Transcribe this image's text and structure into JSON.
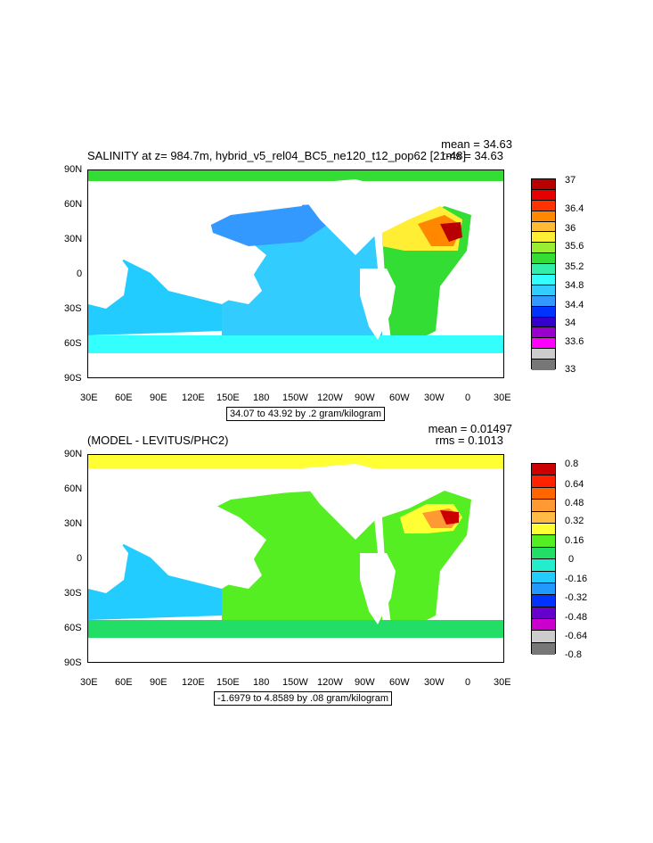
{
  "panels": [
    {
      "title": "SALINITY at z= 984.7m, hybrid_v5_rel04_BC5_ne120_t12_pop62 [21-48]",
      "mean_text": "mean = 34.63",
      "rms_text": "rms = 34.63",
      "range_text": "34.07 to 43.92 by .2 gram/kilogram",
      "colorbar_labels": [
        "37",
        "36.4",
        "36",
        "35.6",
        "35.2",
        "34.8",
        "34.4",
        "34",
        "33.6",
        "33"
      ],
      "colorbar_colors": [
        "#b80000",
        "#e60000",
        "#ff3300",
        "#ff8800",
        "#ffbb33",
        "#ffee33",
        "#99ee33",
        "#33dd33",
        "#33eeaa",
        "#33ffff",
        "#33ccff",
        "#3399ff",
        "#0033ff",
        "#3300cc",
        "#9900cc",
        "#ff00ff",
        "#cccccc",
        "#777777"
      ]
    },
    {
      "title": "(MODEL - LEVITUS/PHC2)",
      "mean_text": "mean = 0.01497",
      "rms_text": "rms = 0.1013",
      "range_text": "-1.6979 to 4.8589 by .08 gram/kilogram",
      "colorbar_labels": [
        "0.8",
        "0.64",
        "0.48",
        "0.32",
        "0.16",
        "0",
        "-0.16",
        "-0.32",
        "-0.48",
        "-0.64",
        "-0.8"
      ],
      "colorbar_colors": [
        "#cc0000",
        "#ff2200",
        "#ff6600",
        "#ff9933",
        "#ffbb44",
        "#ffff33",
        "#55ee22",
        "#22dd66",
        "#22eecc",
        "#22ccff",
        "#2299ff",
        "#0033ff",
        "#6600cc",
        "#cc00cc",
        "#cccccc",
        "#777777"
      ]
    }
  ],
  "axes": {
    "lon_labels": [
      "30E",
      "60E",
      "90E",
      "120E",
      "150E",
      "180",
      "150W",
      "120W",
      "90W",
      "60W",
      "30W",
      "0",
      "30E"
    ],
    "lat_labels": [
      "90N",
      "60N",
      "30N",
      "0",
      "30S",
      "60S",
      "90S"
    ]
  }
}
